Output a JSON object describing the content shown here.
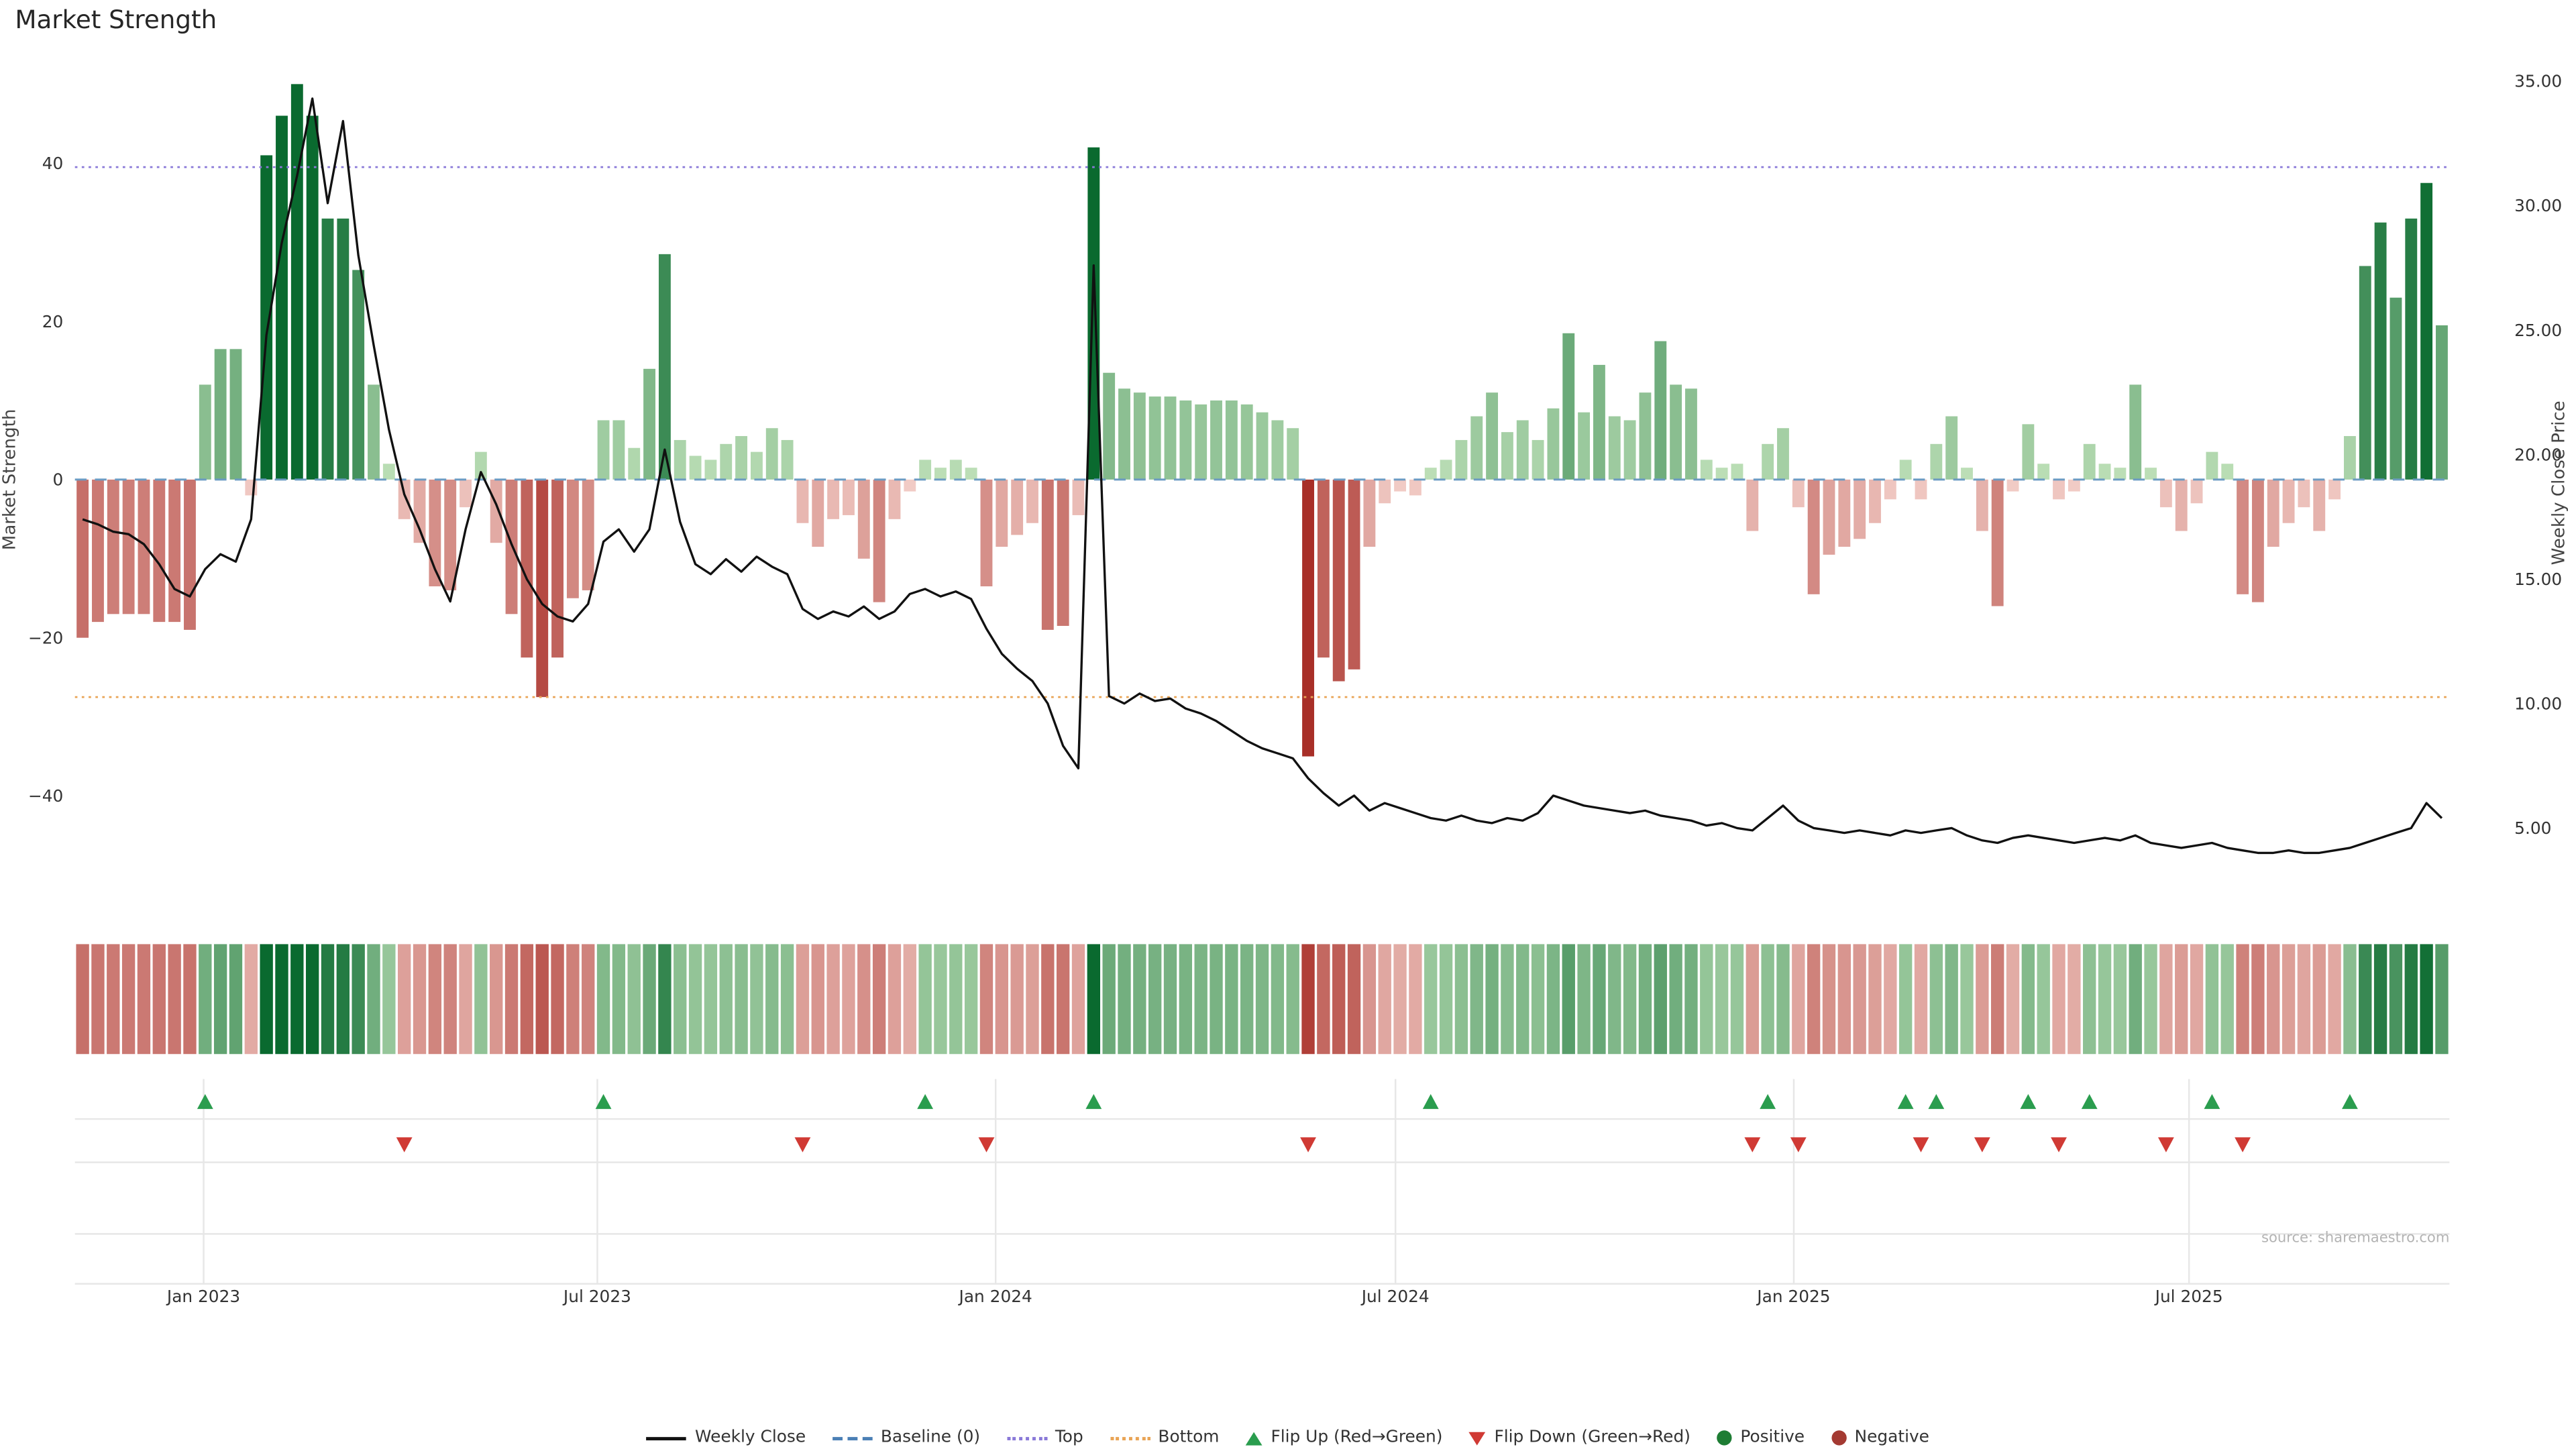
{
  "title": "Market Strength",
  "source": "source: sharemaestro.com",
  "colors": {
    "positive_dark": "#0a6a2f",
    "positive_light": "#bee0b8",
    "negative_dark": "#a82f28",
    "negative_light": "#f2cdc7",
    "line": "#111111",
    "baseline": "#6b9bc3",
    "top": "#8a79d8",
    "bottom": "#e9a455",
    "flip_up": "#2a9d4e",
    "flip_down": "#d03a34",
    "grid": "#e7e7e7",
    "tick_text": "#333333",
    "source_text": "#b3b3b3"
  },
  "legend": [
    {
      "label": "Weekly Close",
      "glyph": "line",
      "color": "#111111"
    },
    {
      "label": "Baseline (0)",
      "glyph": "dash",
      "color": "#4a7fb5"
    },
    {
      "label": "Top",
      "glyph": "dot",
      "color": "#8a79d8"
    },
    {
      "label": "Bottom",
      "glyph": "dot",
      "color": "#e9a455"
    },
    {
      "label": "Flip Up (Red→Green)",
      "glyph": "tri-up",
      "color": "#2a9d4e"
    },
    {
      "label": "Flip Down (Green→Red)",
      "glyph": "tri-down",
      "color": "#d03a34"
    },
    {
      "label": "Positive",
      "glyph": "circle",
      "color": "#1e7d34"
    },
    {
      "label": "Negative",
      "glyph": "circle",
      "color": "#a43a32"
    }
  ],
  "chart_data": {
    "type": "bar",
    "subtype": "weekly bar + line combo with heatmap strip and flip markers",
    "weeks": 155,
    "x_range_note": "weekly data from late Nov 2022 to late Oct 2025",
    "baseline": 0,
    "top_line": 39.5,
    "bottom_line": -27.5,
    "left_axis": {
      "title": "Market Strength",
      "range": [
        -48,
        53
      ],
      "ticks": [
        {
          "value": 40,
          "label": "40"
        },
        {
          "value": 20,
          "label": "20"
        },
        {
          "value": 0,
          "label": "0"
        },
        {
          "value": -20,
          "label": "−20"
        },
        {
          "value": -40,
          "label": "−40"
        }
      ]
    },
    "right_axis": {
      "title": "Weekly Close Price",
      "range": [
        3.4,
        35.8
      ],
      "ticks": [
        {
          "value": 35,
          "label": "35.00"
        },
        {
          "value": 30,
          "label": "30.00"
        },
        {
          "value": 25,
          "label": "25.00"
        },
        {
          "value": 20,
          "label": "20.00"
        },
        {
          "value": 15,
          "label": "15.00"
        },
        {
          "value": 10,
          "label": "10.00"
        },
        {
          "value": 5,
          "label": "5.00"
        }
      ]
    },
    "x_ticks": [
      {
        "week": 8.4,
        "label": "Jan 2023"
      },
      {
        "week": 34.1,
        "label": "Jul 2023"
      },
      {
        "week": 60.1,
        "label": "Jan 2024"
      },
      {
        "week": 86.2,
        "label": "Jul 2024"
      },
      {
        "week": 112.2,
        "label": "Jan 2025"
      },
      {
        "week": 138.0,
        "label": "Jul 2025"
      }
    ],
    "flip_up_weeks": [
      8,
      34,
      55,
      66,
      88,
      110,
      119,
      121,
      127,
      131,
      139,
      148
    ],
    "flip_down_weeks": [
      21,
      47,
      59,
      80,
      109,
      112,
      120,
      124,
      129,
      136,
      141
    ],
    "series": [
      {
        "name": "Market Strength",
        "type": "bar",
        "axis": "left",
        "values": [
          -20,
          -18,
          -17,
          -17,
          -17,
          -18,
          -18,
          -19,
          12,
          16.5,
          16.5,
          -2,
          41,
          46,
          50,
          46,
          33,
          33,
          26.5,
          12,
          2,
          -5,
          -8,
          -13.5,
          -14,
          -3.5,
          3.5,
          -8,
          -17,
          -22.5,
          -27.5,
          -22.5,
          -15,
          -14,
          7.5,
          7.5,
          4,
          14,
          28.5,
          5,
          3,
          2.5,
          4.5,
          5.5,
          3.5,
          6.5,
          5,
          -5.5,
          -8.5,
          -5,
          -4.5,
          -10,
          -15.5,
          -5,
          -1.5,
          2.5,
          1.5,
          2.5,
          1.5,
          -13.5,
          -8.5,
          -7,
          -5.5,
          -19,
          -18.5,
          -4.5,
          42,
          13.5,
          11.5,
          11,
          10.5,
          10.5,
          10,
          9.5,
          10,
          10,
          9.5,
          8.5,
          7.5,
          6.5,
          -35,
          -22.5,
          -25.5,
          -24,
          -8.5,
          -3,
          -1.5,
          -2,
          1.5,
          2.5,
          5,
          8,
          11,
          6,
          7.5,
          5,
          9,
          18.5,
          8.5,
          14.5,
          8,
          7.5,
          11,
          17.5,
          12,
          11.5,
          2.5,
          1.5,
          2,
          -6.5,
          4.5,
          6.5,
          -3.5,
          -14.5,
          -9.5,
          -8.5,
          -7.5,
          -5.5,
          -2.5,
          2.5,
          -2.5,
          4.5,
          8,
          1.5,
          -6.5,
          -16,
          -1.5,
          7,
          2,
          -2.5,
          -1.5,
          4.5,
          2,
          1.5,
          12,
          1.5,
          -3.5,
          -6.5,
          -3,
          3.5,
          2,
          -14.5,
          -15.5,
          -8.5,
          -5.5,
          -3.5,
          -6.5,
          -2.5,
          5.5,
          27,
          32.5,
          23,
          33,
          37.5,
          19.5
        ]
      },
      {
        "name": "Weekly Close",
        "type": "line",
        "axis": "right",
        "values": [
          17.4,
          17.2,
          16.9,
          16.8,
          16.4,
          15.6,
          14.6,
          14.3,
          15.4,
          16,
          15.7,
          17.4,
          24.8,
          28.5,
          31.2,
          34.3,
          30.1,
          33.4,
          28,
          24.4,
          21,
          18.4,
          17,
          15.4,
          14.1,
          17,
          19.3,
          18,
          16.4,
          15,
          14,
          13.5,
          13.3,
          14,
          16.5,
          17,
          16.1,
          17,
          20.2,
          17.3,
          15.6,
          15.2,
          15.8,
          15.3,
          15.9,
          15.5,
          15.2,
          13.8,
          13.4,
          13.7,
          13.5,
          13.9,
          13.4,
          13.7,
          14.4,
          14.6,
          14.3,
          14.5,
          14.2,
          13,
          12,
          11.4,
          10.9,
          10,
          8.3,
          7.4,
          27.6,
          10.3,
          10,
          10.4,
          10.1,
          10.2,
          9.8,
          9.6,
          9.3,
          8.9,
          8.5,
          8.2,
          8,
          7.8,
          7,
          6.4,
          5.9,
          6.3,
          5.7,
          6,
          5.8,
          5.6,
          5.4,
          5.3,
          5.5,
          5.3,
          5.2,
          5.4,
          5.3,
          5.6,
          6.3,
          6.1,
          5.9,
          5.8,
          5.7,
          5.6,
          5.7,
          5.5,
          5.4,
          5.3,
          5.1,
          5.2,
          5,
          4.9,
          5.4,
          5.9,
          5.3,
          5,
          4.9,
          4.8,
          4.9,
          4.8,
          4.7,
          4.9,
          4.8,
          4.9,
          5,
          4.7,
          4.5,
          4.4,
          4.6,
          4.7,
          4.6,
          4.5,
          4.4,
          4.5,
          4.6,
          4.5,
          4.7,
          4.4,
          4.3,
          4.2,
          4.3,
          4.4,
          4.2,
          4.1,
          4,
          4,
          4.1,
          4,
          4,
          4.1,
          4.2,
          4.4,
          4.6,
          4.8,
          5,
          6,
          5.4
        ]
      }
    ]
  }
}
